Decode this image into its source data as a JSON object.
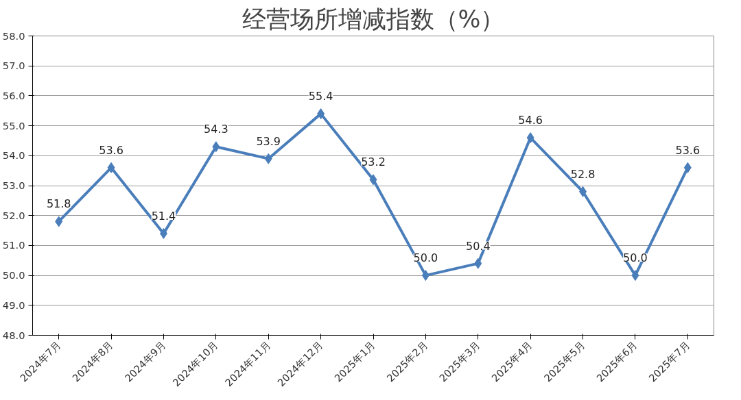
{
  "chart_data": {
    "type": "line",
    "title": "经营场所增减指数（%）",
    "categories": [
      "2024年7月",
      "2024年8月",
      "2024年9月",
      "2024年10月",
      "2024年11月",
      "2024年12月",
      "2025年1月",
      "2025年2月",
      "2025年3月",
      "2025年4月",
      "2025年5月",
      "2025年6月",
      "2025年7月"
    ],
    "series": [
      {
        "color": "#4a7ebb",
        "values": [
          51.8,
          53.6,
          51.4,
          54.3,
          53.9,
          55.4,
          53.2,
          50.0,
          50.4,
          54.6,
          52.8,
          50.0,
          53.6
        ],
        "value_labels": [
          "51.8",
          "53.6",
          "51.4",
          "54.3",
          "53.9",
          "55.4",
          "53.2",
          "50.0",
          "50.4",
          "54.6",
          "52.8",
          "50.0",
          "53.6"
        ]
      }
    ],
    "ylim": [
      48,
      58
    ],
    "yticks": [
      {
        "value": 48,
        "label": "48.0"
      },
      {
        "value": 49,
        "label": "49.0"
      },
      {
        "value": 50,
        "label": "50.0"
      },
      {
        "value": 51,
        "label": "51.0"
      },
      {
        "value": 52,
        "label": "52.0"
      },
      {
        "value": 53,
        "label": "53.0"
      },
      {
        "value": 54,
        "label": "54.0"
      },
      {
        "value": 55,
        "label": "55.0"
      },
      {
        "value": 56,
        "label": "56.0"
      },
      {
        "value": 57,
        "label": "57.0"
      },
      {
        "value": 58,
        "label": "58.0"
      }
    ],
    "grid": "y",
    "marker": "diamond",
    "line_style": "solid"
  }
}
